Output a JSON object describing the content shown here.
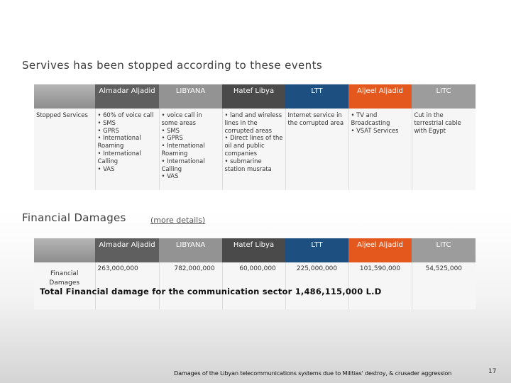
{
  "section1": {
    "title": "Servives has been stopped according to these events",
    "headers": [
      "",
      "Almadar Aljadid",
      "LIBYANA",
      "Hatef Libya",
      "LTT",
      "Aljeel Aljadid",
      "LITC"
    ],
    "row_label": "Stopped Services",
    "cells": [
      [
        "• 60%  of voice call",
        "• SMS",
        "• GPRS",
        "• International Roaming",
        "• International Calling",
        "• VAS"
      ],
      [
        "• voice call in some areas",
        "• SMS",
        "• GPRS",
        "• International Roaming",
        "• International Calling",
        "• VAS"
      ],
      [
        "• land and wireless lines in the corrupted areas",
        "• Direct lines of the oil and public companies",
        "• submarine station musrata"
      ],
      [
        "Internet service in the corrupted area"
      ],
      [
        "• TV and Broadcasting",
        "• VSAT Services"
      ],
      [
        "Cut in the terrestrial cable with Egypt"
      ]
    ]
  },
  "section2": {
    "title": "Financial Damages",
    "more_link": "(more details)",
    "headers": [
      "",
      "Almadar Aljadid",
      "LIBYANA",
      "Hatef Libya",
      "LTT",
      "Aljeel Aljadid",
      "LITC"
    ],
    "row_label": "Financial Damages",
    "values": [
      "263,000,000",
      "782,000,000",
      "60,000,000",
      "225,000,000",
      "101,590,000",
      "54,525,000"
    ],
    "total": "Total Financial damage for the communication sector 1,486,115,000 L.D"
  },
  "footer": {
    "caption": "Damages of the Libyan telecommunications systems due to Militias' destroy, & crusader aggression",
    "page_number": "17"
  }
}
